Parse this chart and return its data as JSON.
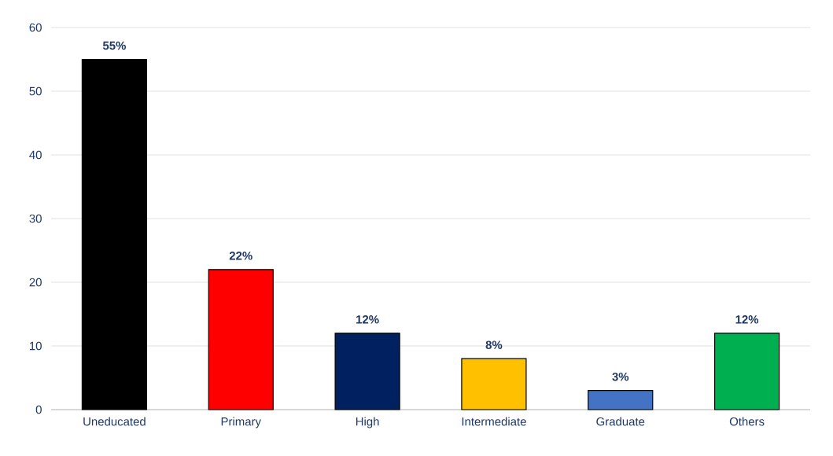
{
  "chart_data": {
    "type": "bar",
    "categories": [
      "Uneducated",
      "Primary",
      "High",
      "Intermediate",
      "Graduate",
      "Others"
    ],
    "values": [
      55,
      22,
      12,
      8,
      3,
      12
    ],
    "colors": [
      "#000000",
      "#ff0000",
      "#002060",
      "#ffc000",
      "#4472c4",
      "#00b050"
    ],
    "value_labels": [
      "55%",
      "22%",
      "12%",
      "8%",
      "3%",
      "12%"
    ],
    "ylim": [
      0,
      60
    ],
    "yticks": [
      0,
      10,
      20,
      30,
      40,
      50,
      60
    ],
    "grid": "y"
  }
}
